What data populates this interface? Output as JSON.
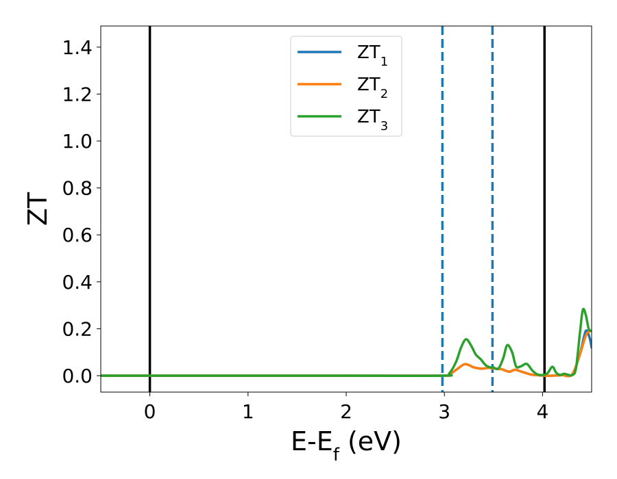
{
  "chart_data": {
    "type": "line",
    "xlabel": {
      "base": "E-E",
      "sub": "f",
      "suffix": " (eV)"
    },
    "ylabel": "ZT",
    "xlim": [
      -0.5,
      4.5
    ],
    "ylim": [
      -0.07,
      1.49
    ],
    "xticks": [
      0,
      1,
      2,
      3,
      4
    ],
    "yticks": [
      0.0,
      0.2,
      0.4,
      0.6,
      0.8,
      1.0,
      1.2,
      1.4
    ],
    "xtick_labels": [
      "0",
      "1",
      "2",
      "3",
      "4"
    ],
    "ytick_labels": [
      "0.0",
      "0.2",
      "0.4",
      "0.6",
      "0.8",
      "1.0",
      "1.2",
      "1.4"
    ],
    "grid": false,
    "legend_position": "top-center",
    "vlines_solid": [
      0.0,
      4.02
    ],
    "vlines_dashed": [
      2.98,
      3.49
    ],
    "vline_solid_color": "#000000",
    "vline_dashed_color": "#1f77b4",
    "series": [
      {
        "name": "ZT",
        "sub": "1",
        "color": "#1f77b4",
        "x": [
          -0.5,
          0.0,
          1.0,
          2.0,
          2.98,
          3.05,
          3.12,
          3.2,
          3.25,
          3.3,
          3.38,
          3.45,
          3.52,
          3.58,
          3.66,
          3.72,
          3.8,
          3.88,
          3.95,
          4.02,
          4.1,
          4.2,
          4.3,
          4.38,
          4.44,
          4.48,
          4.5
        ],
        "y": [
          0.0,
          0.0,
          0.0,
          0.0,
          0.0,
          0.005,
          0.025,
          0.048,
          0.045,
          0.035,
          0.03,
          0.033,
          0.03,
          0.028,
          0.017,
          0.025,
          0.015,
          0.005,
          0.002,
          0.0,
          0.0,
          0.002,
          0.005,
          0.09,
          0.19,
          0.16,
          0.12
        ]
      },
      {
        "name": "ZT",
        "sub": "2",
        "color": "#ff7f0e",
        "x": [
          -0.5,
          0.0,
          1.0,
          2.0,
          2.98,
          3.05,
          3.12,
          3.2,
          3.25,
          3.3,
          3.38,
          3.45,
          3.52,
          3.58,
          3.66,
          3.72,
          3.8,
          3.88,
          3.95,
          4.02,
          4.1,
          4.2,
          4.3,
          4.38,
          4.44,
          4.48,
          4.5
        ],
        "y": [
          0.0,
          0.0,
          0.0,
          0.0,
          0.0,
          0.005,
          0.025,
          0.048,
          0.045,
          0.035,
          0.03,
          0.033,
          0.03,
          0.028,
          0.017,
          0.025,
          0.015,
          0.005,
          0.002,
          0.0,
          0.0,
          0.002,
          0.005,
          0.09,
          0.17,
          0.19,
          0.19
        ]
      },
      {
        "name": "ZT",
        "sub": "3",
        "color": "#2ca02c",
        "x": [
          -0.5,
          0.0,
          1.0,
          2.0,
          2.98,
          3.05,
          3.12,
          3.17,
          3.22,
          3.27,
          3.32,
          3.37,
          3.42,
          3.47,
          3.5,
          3.55,
          3.6,
          3.64,
          3.69,
          3.73,
          3.78,
          3.84,
          3.9,
          3.95,
          4.0,
          4.05,
          4.1,
          4.14,
          4.18,
          4.22,
          4.26,
          4.3,
          4.34,
          4.38,
          4.41,
          4.44,
          4.47,
          4.5
        ],
        "y": [
          0.0,
          0.0,
          0.0,
          0.0,
          0.0,
          0.01,
          0.06,
          0.12,
          0.155,
          0.13,
          0.09,
          0.07,
          0.045,
          0.035,
          0.035,
          0.03,
          0.075,
          0.13,
          0.1,
          0.04,
          0.04,
          0.05,
          0.02,
          0.005,
          0.003,
          0.01,
          0.038,
          0.012,
          0.003,
          0.008,
          0.004,
          0.002,
          0.03,
          0.18,
          0.28,
          0.26,
          0.2,
          0.19
        ]
      }
    ]
  }
}
